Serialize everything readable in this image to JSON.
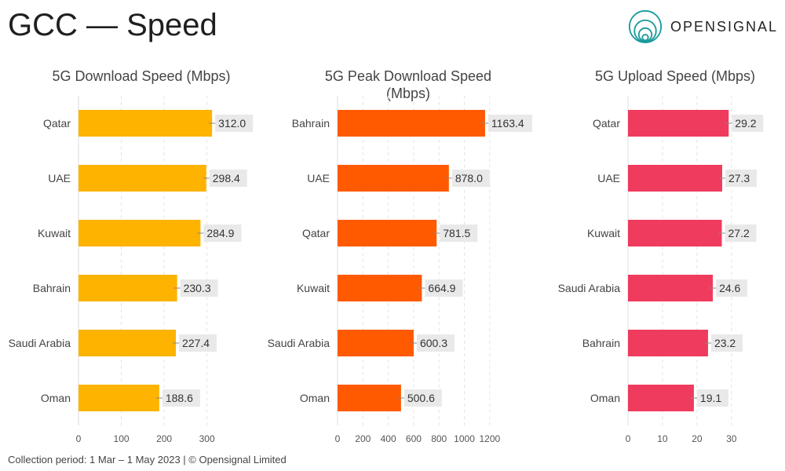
{
  "title": "GCC — Speed",
  "logo_text": "OPENSIGNAL",
  "footer": "Collection period: 1 Mar – 1 May 2023 |  © Opensignal Limited",
  "chart_data": [
    {
      "type": "bar",
      "title": "5G Download Speed (Mbps)",
      "color": "#FDB300",
      "xlim": [
        0,
        330
      ],
      "ticks": [
        0,
        100,
        200,
        300
      ],
      "categories": [
        "Qatar",
        "UAE",
        "Kuwait",
        "Bahrain",
        "Saudi Arabia",
        "Oman"
      ],
      "values": [
        312.0,
        298.4,
        284.9,
        230.3,
        227.4,
        188.6
      ]
    },
    {
      "type": "bar",
      "title": "5G Peak Download Speed (Mbps)",
      "color": "#FF5A00",
      "xlim": [
        0,
        1300
      ],
      "ticks": [
        0,
        200,
        400,
        600,
        800,
        1000,
        1200
      ],
      "categories": [
        "Bahrain",
        "UAE",
        "Qatar",
        "Kuwait",
        "Saudi Arabia",
        "Oman"
      ],
      "values": [
        1163.4,
        878.0,
        781.5,
        664.9,
        600.3,
        500.6
      ]
    },
    {
      "type": "bar",
      "title": "5G Upload Speed (Mbps)",
      "color": "#EF3B5E",
      "xlim": [
        0,
        33
      ],
      "ticks": [
        0,
        10,
        20,
        30
      ],
      "categories": [
        "Qatar",
        "UAE",
        "Kuwait",
        "Saudi Arabia",
        "Bahrain",
        "Oman"
      ],
      "values": [
        29.2,
        27.3,
        27.2,
        24.6,
        23.2,
        19.1
      ]
    }
  ]
}
